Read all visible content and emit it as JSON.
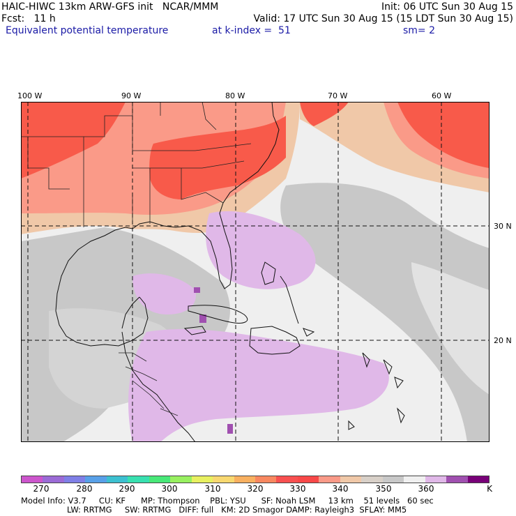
{
  "header": {
    "line1_left": "HAIC-HIWC 13km ARW-GFS init   NCAR/MMM",
    "line1_right": "Init: 06 UTC Sun 30 Aug 15",
    "line2_left": "Fcst:   11 h",
    "line2_right": "Valid: 17 UTC Sun 30 Aug 15 (15 LDT Sun 30 Aug 15)",
    "line3_left": "Equivalent potential temperature",
    "line3_mid": "at k-index =  51",
    "line3_right": "sm= 2"
  },
  "map": {
    "lon_labels": [
      "100 W",
      "90 W",
      "80 W",
      "70 W",
      "60 W"
    ],
    "lat_labels": [
      "30 N",
      "20 N"
    ]
  },
  "colorbar": {
    "colors": [
      "#cc55cc",
      "#9b6bd6",
      "#7f7fe6",
      "#58a0e8",
      "#3cc0d0",
      "#38e0b0",
      "#48e878",
      "#98f060",
      "#e8f060",
      "#f8d870",
      "#f8b060",
      "#f88860",
      "#f85050",
      "#f84848",
      "#fa9a88",
      "#f0c8a8",
      "#d8d0c8",
      "#c8c8c8",
      "#f0f0f0",
      "#e0b8e8",
      "#a050b0",
      "#780078"
    ],
    "tick_labels": [
      "270",
      "280",
      "290",
      "300",
      "310",
      "320",
      "330",
      "340",
      "350",
      "360",
      "K"
    ]
  },
  "footer": {
    "line1": "Model Info: V3.7     CU: KF      MP: Thompson    PBL: YSU      SF: Noah LSM     13 km    51 levels   60 sec",
    "line2": "LW: RRTMG     SW: RRTMG   DIFF: full   KM: 2D Smagor DAMP: Rayleigh3  SFLAY: MM5"
  }
}
